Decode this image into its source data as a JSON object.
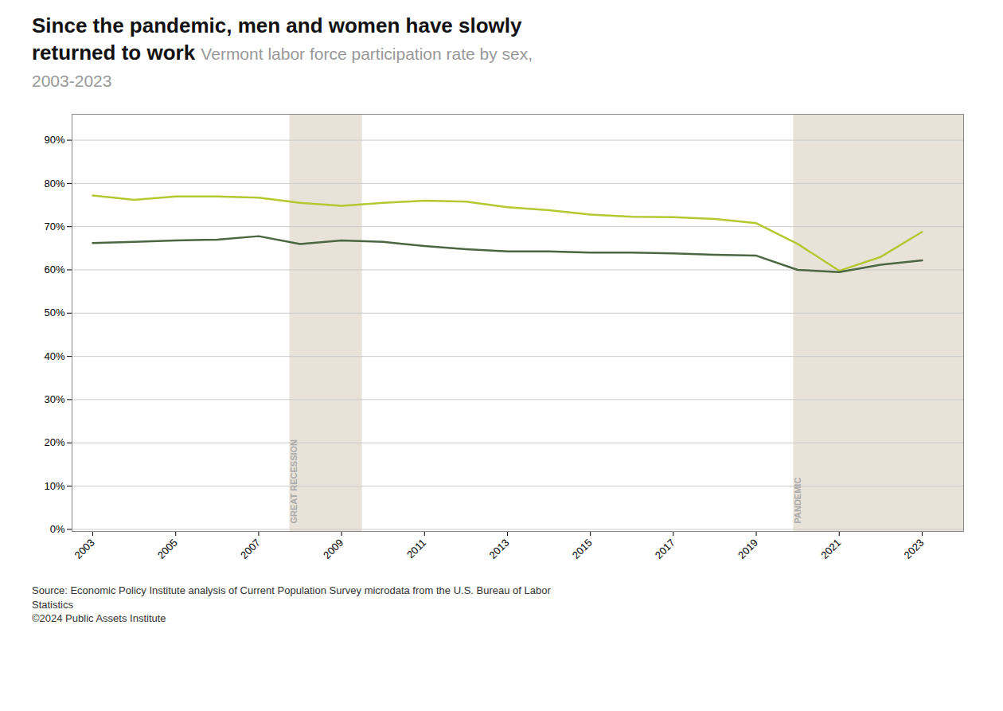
{
  "chart_data": {
    "type": "line",
    "title": "Since the pandemic, men and women have slowly\nreturned to work",
    "subtitle": "Vermont labor force participation rate by sex,\n2003-2023",
    "caption": "Source: Economic Policy Institute analysis of Current Population Survey microdata from the U.S. Bureau of Labor\nStatistics\n©2024 Public Assets Institute",
    "x": [
      2003,
      2004,
      2005,
      2006,
      2007,
      2008,
      2009,
      2010,
      2011,
      2012,
      2013,
      2014,
      2015,
      2016,
      2017,
      2018,
      2019,
      2020,
      2021,
      2022,
      2023
    ],
    "series": [
      {
        "color": "#b5c832",
        "values": [
          0.772,
          0.762,
          0.77,
          0.77,
          0.767,
          0.755,
          0.748,
          0.755,
          0.76,
          0.758,
          0.745,
          0.738,
          0.728,
          0.723,
          0.722,
          0.718,
          0.708,
          0.66,
          0.598,
          0.63,
          0.688
        ]
      },
      {
        "color": "#4a6741",
        "values": [
          0.662,
          0.665,
          0.668,
          0.67,
          0.678,
          0.66,
          0.668,
          0.665,
          0.655,
          0.648,
          0.643,
          0.643,
          0.64,
          0.64,
          0.638,
          0.635,
          0.633,
          0.6,
          0.595,
          0.612,
          0.622
        ]
      }
    ],
    "xlim": [
      2002.5,
      2024.0
    ],
    "xticks": [
      2003,
      2005,
      2007,
      2009,
      2011,
      2013,
      2015,
      2017,
      2019,
      2021,
      2023
    ],
    "ylim": [
      -0.005,
      0.96
    ],
    "yticks": [
      {
        "value": 0.0,
        "label": "0%"
      },
      {
        "value": 0.1,
        "label": "10%"
      },
      {
        "value": 0.2,
        "label": "20%"
      },
      {
        "value": 0.3,
        "label": "30%"
      },
      {
        "value": 0.4,
        "label": "40%"
      },
      {
        "value": 0.5,
        "label": "50%"
      },
      {
        "value": 0.6,
        "label": "60%"
      },
      {
        "value": 0.7,
        "label": "70%"
      },
      {
        "value": 0.8,
        "label": "80%"
      },
      {
        "value": 0.9,
        "label": "90%"
      }
    ],
    "grid": true,
    "annotations": [
      {
        "text": "GREAT RECESSION",
        "x_start": 2007.75,
        "x_end": 2009.5,
        "color": "#e8e2d8"
      },
      {
        "text": "PANDEMIC",
        "x_start": 2019.9,
        "x_end": 2024.0,
        "color": "#e8e2d8"
      }
    ]
  }
}
